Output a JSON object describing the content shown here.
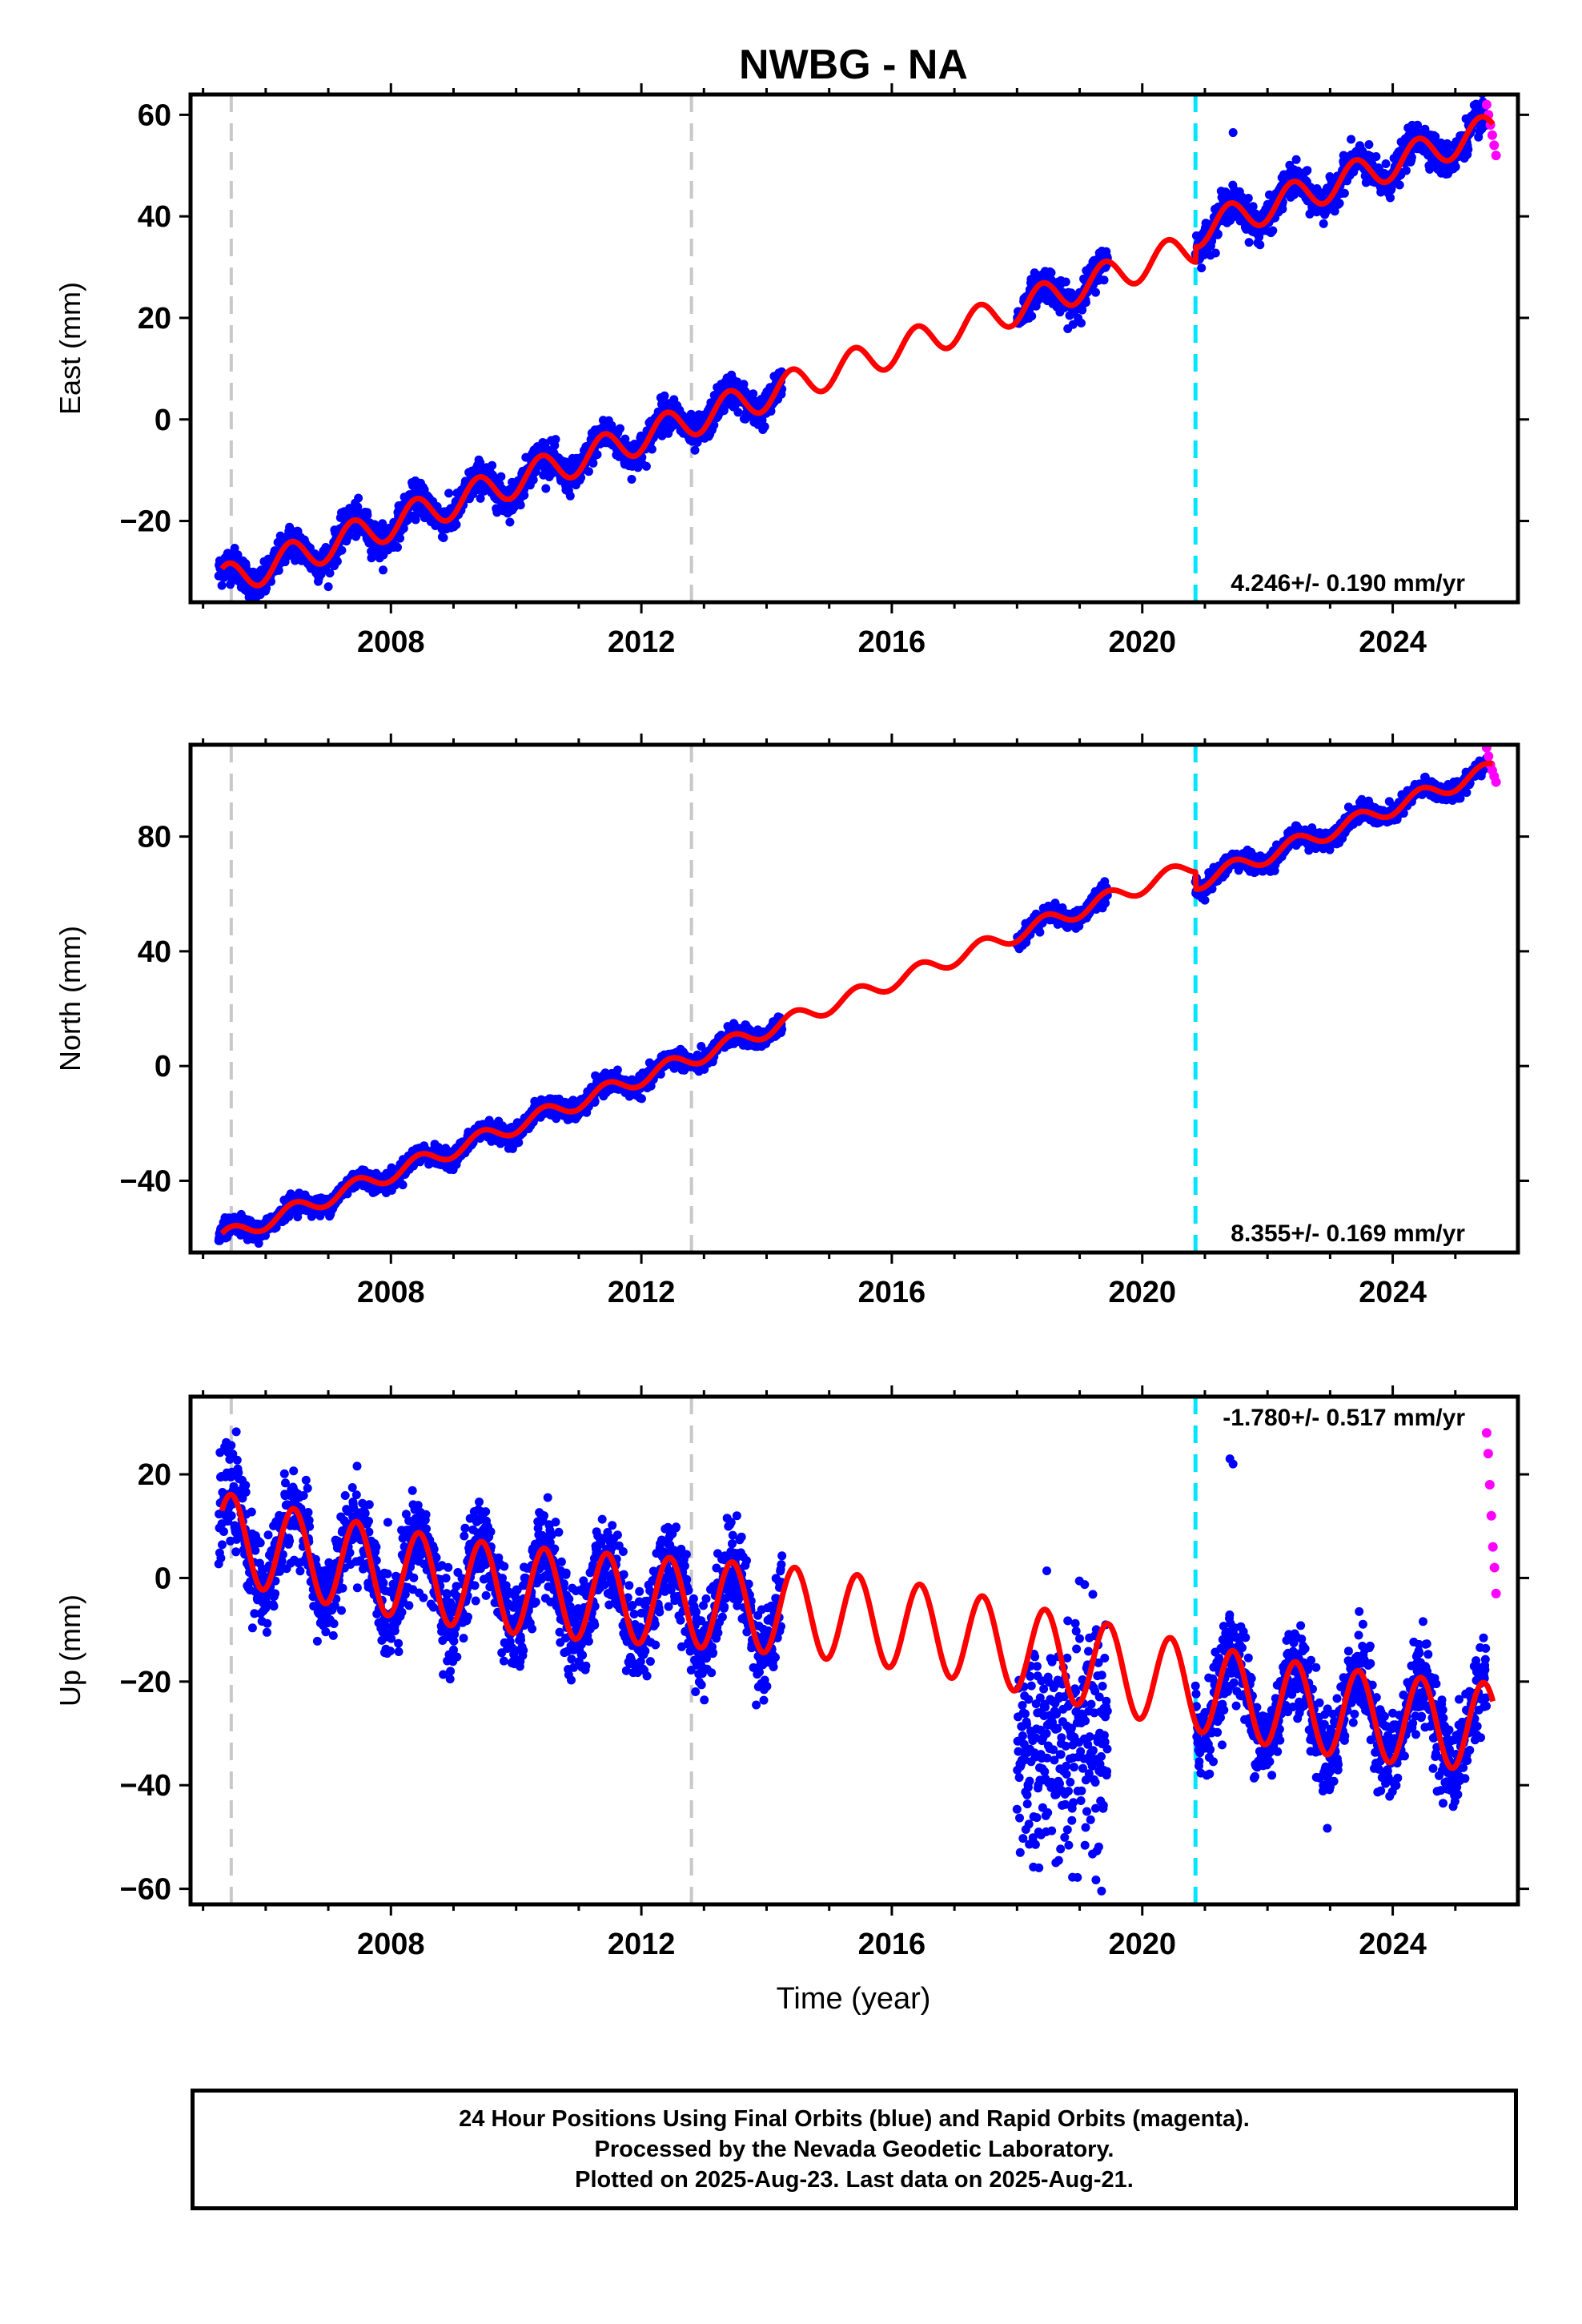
{
  "title": "NWBG - NA",
  "chart_data": [
    {
      "type": "scatter",
      "panel": "east",
      "ylabel": "East (mm)",
      "xlabel": "",
      "xlim": [
        2004.8,
        2026.0
      ],
      "ylim": [
        -36,
        64
      ],
      "xticks": [
        2008,
        2012,
        2016,
        2020,
        2024
      ],
      "yticks": [
        -20,
        0,
        20,
        40,
        60
      ],
      "rate_label": "4.246+/- 0.190 mm/yr",
      "rate_position": "bottom-right",
      "grid": false,
      "final_orbits": {
        "color": "#0000ff",
        "segments": [
          {
            "from": 2005.25,
            "to": 2014.25
          },
          {
            "from": 2018.0,
            "to": 2019.45
          },
          {
            "from": 2020.85,
            "to": 2025.5
          }
        ]
      },
      "rapid_orbits": {
        "color": "#ff00ff",
        "from": 2025.5,
        "to": 2025.65,
        "values": [
          62,
          60,
          58,
          56,
          54,
          52
        ]
      },
      "outliers": [
        {
          "x": 2021.45,
          "y": 56.5
        }
      ],
      "model": {
        "color": "#ff0000",
        "rate": 4.246,
        "offsets": [
          {
            "x": 2020.85,
            "value": 3.0
          }
        ]
      },
      "breaks": [
        {
          "x": 2005.45,
          "color": "#c8c8c8"
        },
        {
          "x": 2012.8,
          "color": "#c8c8c8"
        },
        {
          "x": 2020.85,
          "color": "#00e6ff"
        }
      ]
    },
    {
      "type": "scatter",
      "panel": "north",
      "ylabel": "North (mm)",
      "xlabel": "",
      "xlim": [
        2004.8,
        2026.0
      ],
      "ylim": [
        -65,
        112
      ],
      "xticks": [
        2008,
        2012,
        2016,
        2020,
        2024
      ],
      "yticks": [
        -40,
        0,
        40,
        80
      ],
      "rate_label": "8.355+/- 0.169 mm/yr",
      "rate_position": "bottom-right",
      "grid": false,
      "final_orbits": {
        "color": "#0000ff",
        "segments": [
          {
            "from": 2005.25,
            "to": 2014.25
          },
          {
            "from": 2018.0,
            "to": 2019.45
          },
          {
            "from": 2020.85,
            "to": 2025.5
          }
        ]
      },
      "rapid_orbits": {
        "color": "#ff00ff",
        "from": 2025.5,
        "to": 2025.65,
        "values": [
          111,
          108,
          105,
          103,
          101,
          99
        ]
      },
      "outliers": [],
      "model": {
        "color": "#ff0000",
        "rate": 8.355,
        "offsets": [
          {
            "x": 2020.85,
            "value": -6.0
          }
        ]
      },
      "breaks": [
        {
          "x": 2005.45,
          "color": "#c8c8c8"
        },
        {
          "x": 2012.8,
          "color": "#c8c8c8"
        },
        {
          "x": 2020.85,
          "color": "#00e6ff"
        }
      ]
    },
    {
      "type": "scatter",
      "panel": "up",
      "ylabel": "Up (mm)",
      "xlabel": "Time (year)",
      "xlim": [
        2004.8,
        2026.0
      ],
      "ylim": [
        -63,
        35
      ],
      "xticks": [
        2008,
        2012,
        2016,
        2020,
        2024
      ],
      "yticks": [
        -60,
        -40,
        -20,
        0,
        20
      ],
      "rate_label": "-1.780+/- 0.517 mm/yr",
      "rate_position": "top-right",
      "grid": false,
      "final_orbits": {
        "color": "#0000ff",
        "segments": [
          {
            "from": 2005.25,
            "to": 2014.25
          },
          {
            "from": 2018.0,
            "to": 2019.45
          },
          {
            "from": 2020.85,
            "to": 2025.5
          }
        ]
      },
      "rapid_orbits": {
        "color": "#ff00ff",
        "from": 2025.5,
        "to": 2025.65,
        "values": [
          28,
          24,
          18,
          12,
          6,
          2,
          -3
        ]
      },
      "outliers": [
        {
          "x": 2021.4,
          "y": 23
        },
        {
          "x": 2021.45,
          "y": 22
        },
        {
          "x": 2008.9,
          "y": -16
        },
        {
          "x": 2008.95,
          "y": -18
        }
      ],
      "model": {
        "color": "#ff0000",
        "rate": -1.78,
        "offsets": []
      },
      "breaks": [
        {
          "x": 2005.45,
          "color": "#c8c8c8"
        },
        {
          "x": 2012.8,
          "color": "#c8c8c8"
        },
        {
          "x": 2020.85,
          "color": "#00e6ff"
        }
      ]
    }
  ],
  "caption": {
    "line1": "24 Hour Positions Using Final Orbits (blue) and Rapid Orbits (magenta).",
    "line2": "Processed by the Nevada Geodetic Laboratory.",
    "line3": "Plotted on 2025-Aug-23. Last data on 2025-Aug-21."
  }
}
